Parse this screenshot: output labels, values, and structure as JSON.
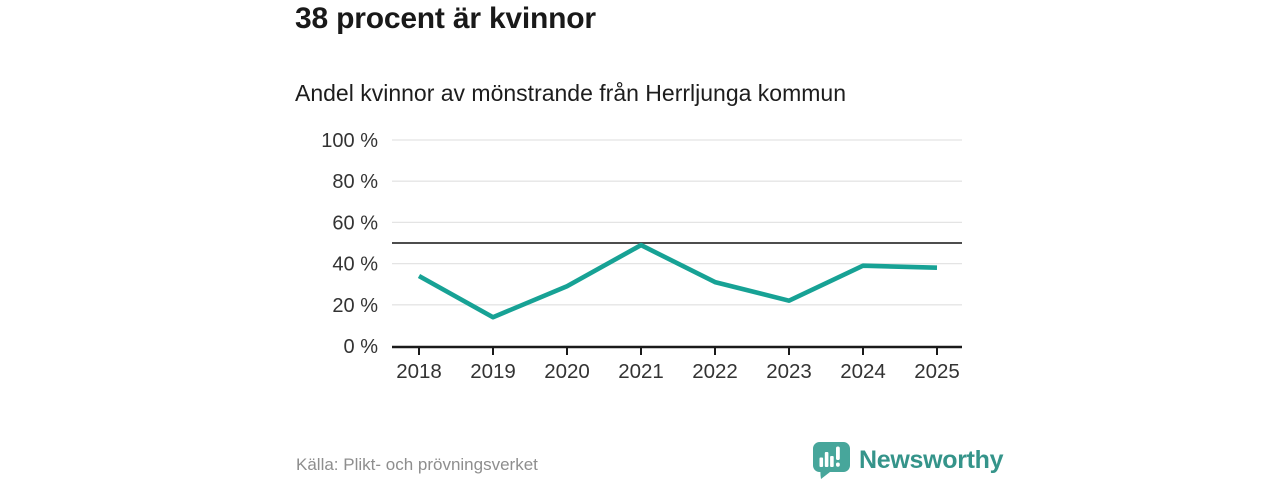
{
  "page": {
    "background": "#ffffff"
  },
  "header": {
    "title": "38 procent är kvinnor",
    "subtitle": "Andel kvinnor av mönstrande från Herrljunga kommun"
  },
  "footer": {
    "source": "Källa: Plikt- och prövningsverket",
    "brand": {
      "name": "Newsworthy",
      "icon": "chart-speech-bubble",
      "text_color": "#35948a",
      "icon_color": "#47a69b"
    }
  },
  "chart_data": {
    "type": "line",
    "title": "38 procent är kvinnor",
    "subtitle": "Andel kvinnor av mönstrande från Herrljunga kommun",
    "x": [
      "2018",
      "2019",
      "2020",
      "2021",
      "2022",
      "2023",
      "2024",
      "2025"
    ],
    "series": [
      {
        "name": "Andel kvinnor av mönstrande",
        "values": [
          34,
          14,
          29,
          49,
          31,
          22,
          39,
          38
        ]
      }
    ],
    "ylim": [
      0,
      100
    ],
    "y_ticks": [
      0,
      20,
      40,
      60,
      80,
      100
    ],
    "y_tick_labels": [
      "0 %",
      "20 %",
      "40 %",
      "60 %",
      "80 %",
      "100 %"
    ],
    "reference_line_y": 50,
    "grid": "horizontal",
    "legend": "none",
    "colors": {
      "line": "#17a295",
      "grid": "#e4e4e4",
      "reference_line": "#4d4d4d",
      "axis": "#1a1a1a",
      "tick_text": "#333333"
    }
  }
}
